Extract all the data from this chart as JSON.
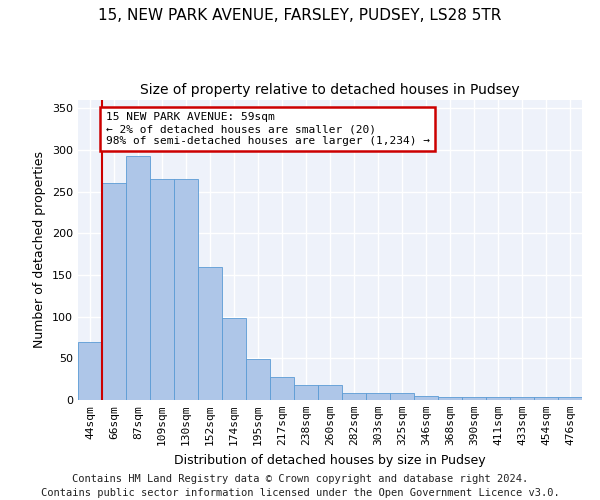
{
  "title1": "15, NEW PARK AVENUE, FARSLEY, PUDSEY, LS28 5TR",
  "title2": "Size of property relative to detached houses in Pudsey",
  "xlabel": "Distribution of detached houses by size in Pudsey",
  "ylabel": "Number of detached properties",
  "categories": [
    "44sqm",
    "66sqm",
    "87sqm",
    "109sqm",
    "130sqm",
    "152sqm",
    "174sqm",
    "195sqm",
    "217sqm",
    "238sqm",
    "260sqm",
    "282sqm",
    "303sqm",
    "325sqm",
    "346sqm",
    "368sqm",
    "390sqm",
    "411sqm",
    "433sqm",
    "454sqm",
    "476sqm"
  ],
  "values": [
    70,
    260,
    293,
    265,
    265,
    160,
    98,
    49,
    28,
    18,
    18,
    9,
    8,
    8,
    5,
    4,
    4,
    4,
    4,
    4,
    4
  ],
  "bar_color": "#aec6e8",
  "bar_edge_color": "#5b9bd5",
  "highlight_color": "#cc0000",
  "annotation_line1": "15 NEW PARK AVENUE: 59sqm",
  "annotation_line2": "← 2% of detached houses are smaller (20)",
  "annotation_line3": "98% of semi-detached houses are larger (1,234) →",
  "annotation_box_color": "#ffffff",
  "annotation_box_edge": "#cc0000",
  "footer": "Contains HM Land Registry data © Crown copyright and database right 2024.\nContains public sector information licensed under the Open Government Licence v3.0.",
  "ylim": [
    0,
    360
  ],
  "yticks": [
    0,
    50,
    100,
    150,
    200,
    250,
    300,
    350
  ],
  "bg_color": "#eef2fa",
  "grid_color": "#ffffff",
  "title1_fontsize": 11,
  "title2_fontsize": 10,
  "xlabel_fontsize": 9,
  "ylabel_fontsize": 9,
  "tick_fontsize": 8,
  "footer_fontsize": 7.5,
  "annot_fontsize": 8
}
